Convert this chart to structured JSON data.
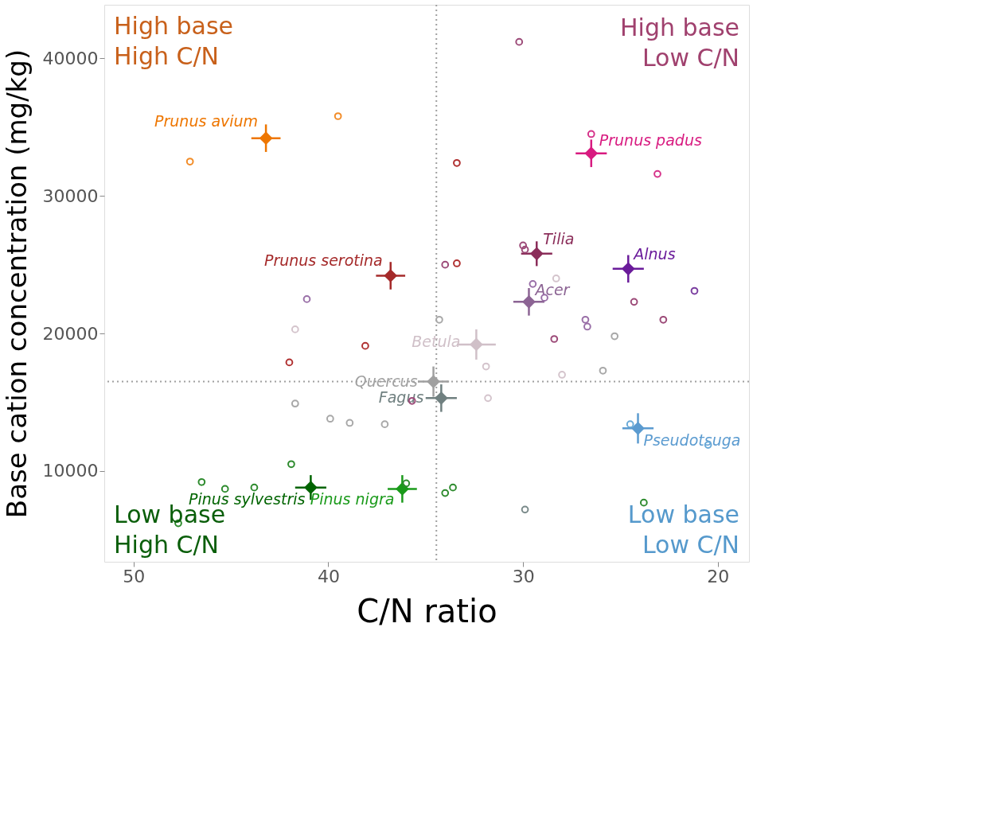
{
  "chart_data": {
    "type": "scatter",
    "xlabel": "C/N ratio",
    "ylabel": "Base cation concentration (mg/kg)",
    "xlim": [
      51.5,
      18.4
    ],
    "xticks": [
      50,
      40,
      30,
      20
    ],
    "ylim": [
      3400,
      43900
    ],
    "yticks": [
      10000,
      20000,
      30000,
      40000
    ],
    "grid": false,
    "ref_lines": [
      {
        "axis": "x",
        "value": 34.45,
        "color": "#a0a0a0",
        "line_style": "dotted"
      },
      {
        "axis": "y",
        "value": 16500,
        "color": "#a0a0a0",
        "line_style": "dotted"
      }
    ],
    "annotations": [
      "High base\nHigh C/N",
      "High base\nLow C/N",
      "Low base\nHigh C/N",
      "Low base\nLow C/N"
    ],
    "series": [
      {
        "name": "Prunus avium",
        "marker": "diamond",
        "color": "#ee7600",
        "x": [
          43.2
        ],
        "values": [
          34200
        ],
        "xerrors": [
          0.75
        ],
        "errors": [
          1000
        ]
      },
      {
        "name": "Prunus serotina",
        "type": "scatter",
        "marker": "diamond",
        "color": "#a52a2a",
        "x": [
          36.8
        ],
        "values": [
          24200
        ],
        "xerrors": [
          0.75
        ],
        "errors": [
          1000
        ]
      },
      {
        "name": "Prunus padus",
        "type": "scatter",
        "marker": "diamond",
        "color": "#d81b80",
        "x": [
          26.5
        ],
        "values": [
          33100
        ],
        "xerrors": [
          0.8
        ],
        "errors": [
          1000
        ]
      },
      {
        "name": "Tilia",
        "type": "scatter",
        "marker": "diamond",
        "color": "#8b2e5a",
        "x": [
          29.3
        ],
        "values": [
          25800
        ],
        "xerrors": [
          0.8
        ],
        "errors": [
          900
        ]
      },
      {
        "name": "Alnus",
        "type": "scatter",
        "marker": "diamond",
        "color": "#6a1b9a",
        "x": [
          24.6
        ],
        "values": [
          24700
        ],
        "xerrors": [
          0.8
        ],
        "errors": [
          1000
        ]
      },
      {
        "name": "Acer",
        "type": "scatter",
        "marker": "diamond",
        "color": "#8c6494",
        "x": [
          29.7
        ],
        "values": [
          22300
        ],
        "xerrors": [
          0.8
        ],
        "errors": [
          1000
        ]
      },
      {
        "name": "Betula",
        "type": "scatter",
        "marker": "diamond",
        "color": "#d0c0c8",
        "x": [
          32.4
        ],
        "values": [
          19200
        ],
        "xerrors": [
          1.0
        ],
        "errors": [
          1100
        ]
      },
      {
        "name": "Quercus",
        "type": "scatter",
        "marker": "diamond",
        "color": "#a0a0a0",
        "x": [
          34.6
        ],
        "values": [
          16500
        ],
        "xerrors": [
          0.8
        ],
        "errors": [
          1100
        ]
      },
      {
        "name": "Fagus",
        "type": "scatter",
        "marker": "diamond",
        "color": "#708080",
        "x": [
          34.2
        ],
        "values": [
          15300
        ],
        "xerrors": [
          0.8
        ],
        "errors": [
          1000
        ]
      },
      {
        "name": "Pinus sylvestris",
        "type": "scatter",
        "marker": "diamond",
        "color": "#006400",
        "x": [
          40.9
        ],
        "values": [
          8800
        ],
        "xerrors": [
          0.8
        ],
        "errors": [
          900
        ]
      },
      {
        "name": "Pinus nigra",
        "type": "scatter",
        "marker": "diamond",
        "color": "#1a9a1a",
        "x": [
          36.2
        ],
        "values": [
          8700
        ],
        "xerrors": [
          0.75
        ],
        "errors": [
          1000
        ]
      },
      {
        "name": "Pseudotsuga",
        "type": "scatter",
        "marker": "diamond",
        "color": "#5b9bd0",
        "x": [
          24.1
        ],
        "values": [
          13100
        ],
        "xerrors": [
          0.8
        ],
        "errors": [
          1100
        ]
      },
      {
        "type": "scatter",
        "marker": "circle",
        "color": "#f28c28",
        "x": [
          47.1,
          39.5
        ],
        "values": [
          32500,
          35800
        ]
      },
      {
        "type": "scatter",
        "marker": "circle",
        "color": "#b03030",
        "x": [
          33.4,
          33.4,
          42.0,
          38.1
        ],
        "values": [
          32400,
          25100,
          17900,
          19100
        ]
      },
      {
        "type": "scatter",
        "marker": "circle",
        "color": "#d6338a",
        "x": [
          26.5,
          23.1
        ],
        "values": [
          34500,
          31600
        ]
      },
      {
        "type": "scatter",
        "marker": "circle",
        "color": "#9c4a78",
        "x": [
          30.2,
          34.0,
          30.0,
          29.9,
          24.3,
          22.8,
          28.4,
          35.7
        ],
        "values": [
          41200,
          25000,
          26400,
          26100,
          22300,
          21000,
          19600,
          15100
        ]
      },
      {
        "type": "scatter",
        "marker": "circle",
        "color": "#9a70a8",
        "x": [
          41.1,
          26.8,
          26.7,
          29.5,
          28.9
        ],
        "values": [
          22500,
          21000,
          20500,
          23600,
          22600
        ]
      },
      {
        "type": "scatter",
        "marker": "circle",
        "color": "#7b3fa0",
        "x": [
          21.2
        ],
        "values": [
          23100
        ]
      },
      {
        "type": "scatter",
        "marker": "circle",
        "color": "#d4c4cc",
        "x": [
          41.7,
          28.3,
          31.9,
          31.8,
          28.0
        ],
        "values": [
          20300,
          24000,
          17600,
          15300,
          17000
        ]
      },
      {
        "type": "scatter",
        "marker": "circle",
        "color": "#a8a8a8",
        "x": [
          34.3,
          41.7,
          39.9,
          38.9,
          37.1,
          25.3,
          25.9
        ],
        "values": [
          21000,
          14900,
          13800,
          13500,
          13400,
          19800,
          17300
        ]
      },
      {
        "type": "scatter",
        "marker": "circle",
        "color": "#7a8a8a",
        "x": [
          29.9
        ],
        "values": [
          7200
        ]
      },
      {
        "type": "scatter",
        "marker": "circle",
        "color": "#2e8b2e",
        "x": [
          46.5,
          45.3,
          43.8,
          41.9,
          47.7,
          36.0,
          34.0,
          33.6,
          23.8
        ],
        "values": [
          9200,
          8700,
          8800,
          10500,
          6200,
          9100,
          8400,
          8800,
          7700
        ]
      },
      {
        "type": "scatter",
        "marker": "circle",
        "color": "#6aaad8",
        "x": [
          24.5,
          20.5
        ],
        "values": [
          13400,
          11900
        ]
      }
    ]
  }
}
